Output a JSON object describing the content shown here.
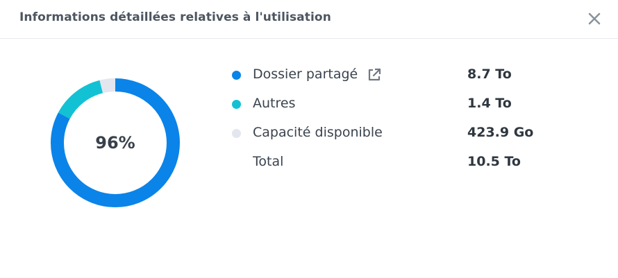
{
  "dialog": {
    "title": "Informations détaillées relatives à l'utilisation",
    "close_icon": "close-icon"
  },
  "usage": {
    "percent_label": "96%",
    "percent_used": 96,
    "items": [
      {
        "label": "Dossier partagé",
        "value": "8.7 To",
        "color": "#0a84e8",
        "size_to": 8.7,
        "icon": "external-link-icon"
      },
      {
        "label": "Autres",
        "value": "1.4 To",
        "color": "#12c2d4",
        "size_to": 1.4
      },
      {
        "label": "Capacité disponible",
        "value": "423.9 Go",
        "color": "#e4e6ef",
        "size_to": 0.4139
      },
      {
        "label": "Total",
        "value": "10.5 To"
      }
    ]
  }
}
